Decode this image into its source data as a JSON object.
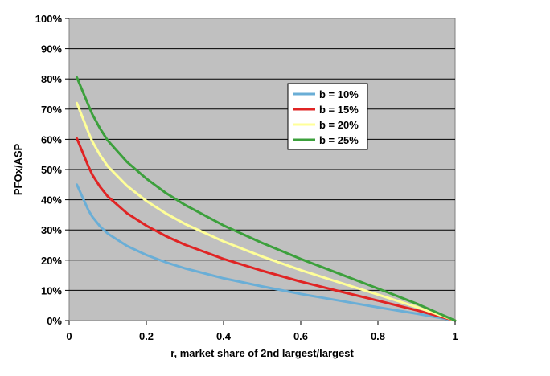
{
  "chart_data": {
    "type": "line",
    "title": "",
    "xlabel": "r, market share of 2nd largest/largest",
    "ylabel": "PFOx/ASP",
    "xlim": [
      0,
      1
    ],
    "ylim": [
      0,
      100
    ],
    "x_ticks": [
      "0",
      "0.2",
      "0.4",
      "0.6",
      "0.8",
      "1"
    ],
    "y_ticks": [
      "0%",
      "10%",
      "20%",
      "30%",
      "40%",
      "50%",
      "60%",
      "70%",
      "80%",
      "90%",
      "100%"
    ],
    "grid": "horizontal",
    "background": "#c0c0c0",
    "legend_position": "upper-right",
    "x": [
      0.02,
      0.05,
      0.06,
      0.08,
      0.1,
      0.15,
      0.2,
      0.25,
      0.3,
      0.4,
      0.5,
      0.6,
      0.7,
      0.8,
      0.9,
      1.0
    ],
    "series": [
      {
        "name": "b = 10%",
        "color": "#6aaed6",
        "values": [
          45,
          36.5,
          34.4,
          31.2,
          28.8,
          24.7,
          21.7,
          19.3,
          17.3,
          14.0,
          11.3,
          8.8,
          6.6,
          4.4,
          2.3,
          0
        ]
      },
      {
        "name": "b = 15%",
        "color": "#e02424",
        "values": [
          60.3,
          51.0,
          48.3,
          44.3,
          41.1,
          35.5,
          31.4,
          28.0,
          25.1,
          20.4,
          16.5,
          12.9,
          9.7,
          6.6,
          3.4,
          0
        ]
      },
      {
        "name": "b = 20%",
        "color": "#ffff99",
        "values": [
          72,
          62.3,
          59.3,
          54.8,
          51.1,
          44.6,
          39.6,
          35.5,
          32.0,
          26.2,
          21.2,
          16.7,
          12.6,
          8.6,
          4.5,
          0
        ]
      },
      {
        "name": "b = 25%",
        "color": "#3ca03c",
        "values": [
          80.5,
          71.3,
          68.3,
          63.6,
          59.6,
          52.5,
          47.0,
          42.3,
          38.3,
          31.5,
          25.7,
          20.4,
          15.5,
          10.6,
          5.6,
          0
        ]
      }
    ]
  }
}
